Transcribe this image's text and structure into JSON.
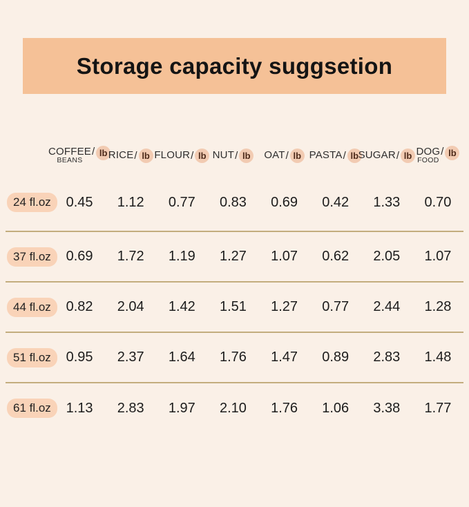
{
  "page": {
    "background": "#faf0e7"
  },
  "banner": {
    "title": "Storage capacity suggsetion",
    "background": "#f5c197"
  },
  "table": {
    "separator": "/",
    "unit_badge": "lb",
    "unit_badge_bg": "#f2cbb2",
    "divider_color": "#c3ad7e",
    "columns": [
      {
        "name": "COFFEE",
        "sub": "BEANS"
      },
      {
        "name": "RICE",
        "sub": ""
      },
      {
        "name": "FLOUR",
        "sub": ""
      },
      {
        "name": "NUT",
        "sub": ""
      },
      {
        "name": "OAT",
        "sub": ""
      },
      {
        "name": "PASTA",
        "sub": ""
      },
      {
        "name": "SUGAR",
        "sub": ""
      },
      {
        "name": "DOG",
        "sub": "FOOD"
      }
    ],
    "rows": [
      {
        "label": "24 fl.oz",
        "values": [
          "0.45",
          "1.12",
          "0.77",
          "0.83",
          "0.69",
          "0.42",
          "1.33",
          "0.70"
        ]
      },
      {
        "label": "37 fl.oz",
        "values": [
          "0.69",
          "1.72",
          "1.19",
          "1.27",
          "1.07",
          "0.62",
          "2.05",
          "1.07"
        ]
      },
      {
        "label": "44 fl.oz",
        "values": [
          "0.82",
          "2.04",
          "1.42",
          "1.51",
          "1.27",
          "0.77",
          "2.44",
          "1.28"
        ]
      },
      {
        "label": "51 fl.oz",
        "values": [
          "0.95",
          "2.37",
          "1.64",
          "1.76",
          "1.47",
          "0.89",
          "2.83",
          "1.48"
        ]
      },
      {
        "label": "61 fl.oz",
        "values": [
          "1.13",
          "2.83",
          "1.97",
          "2.10",
          "1.76",
          "1.06",
          "3.38",
          "1.77"
        ]
      }
    ]
  },
  "chart_data": {
    "type": "table",
    "title": "Storage capacity suggsetion",
    "unit": "lb",
    "columns": [
      "COFFEE BEANS/lb",
      "RICE/lb",
      "FLOUR/lb",
      "NUT/lb",
      "OAT/lb",
      "PASTA/lb",
      "SUGAR/lb",
      "DOG FOOD/lb"
    ],
    "row_labels": [
      "24 fl.oz",
      "37 fl.oz",
      "44 fl.oz",
      "51 fl.oz",
      "61 fl.oz"
    ],
    "values": [
      [
        0.45,
        1.12,
        0.77,
        0.83,
        0.69,
        0.42,
        1.33,
        0.7
      ],
      [
        0.69,
        1.72,
        1.19,
        1.27,
        1.07,
        0.62,
        2.05,
        1.07
      ],
      [
        0.82,
        2.04,
        1.42,
        1.51,
        1.27,
        0.77,
        2.44,
        1.28
      ],
      [
        0.95,
        2.37,
        1.64,
        1.76,
        1.47,
        0.89,
        2.83,
        1.48
      ],
      [
        1.13,
        2.83,
        1.97,
        2.1,
        1.76,
        1.06,
        3.38,
        1.77
      ]
    ]
  }
}
